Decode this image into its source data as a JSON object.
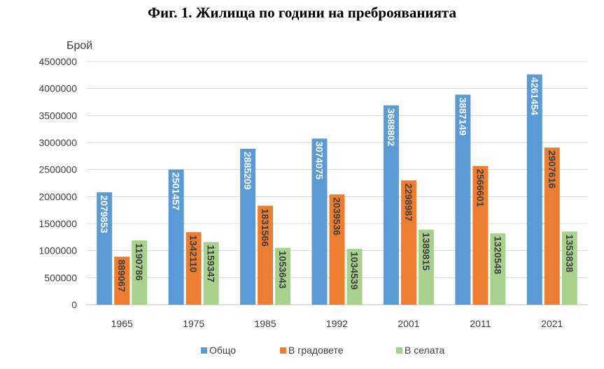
{
  "title": "Фиг. 1. Жилища по години на преброяванията",
  "chart_data": {
    "type": "bar",
    "title": "Фиг. 1. Жилища по години на преброяванията",
    "ylabel": "Брой",
    "xlabel": "",
    "categories": [
      "1965",
      "1975",
      "1985",
      "1992",
      "2001",
      "2011",
      "2021"
    ],
    "ylim": [
      0,
      4500000
    ],
    "yticks": [
      "0",
      "500000",
      "1000000",
      "1500000",
      "2000000",
      "2500000",
      "3000000",
      "3500000",
      "4000000",
      "4500000"
    ],
    "grid": true,
    "legend_position": "bottom",
    "series": [
      {
        "name": "Общо",
        "color": "#5b9bd5",
        "label_color": "#ffffff",
        "values": [
          2079853,
          2501457,
          2885209,
          3074075,
          3688802,
          3887149,
          4261454
        ]
      },
      {
        "name": "В градовете",
        "color": "#ed7d31",
        "label_color": "#404040",
        "values": [
          889067,
          1342110,
          1831566,
          2039536,
          2298987,
          2566601,
          2907616
        ]
      },
      {
        "name": "В селата",
        "color": "#a9d18e",
        "label_color": "#404040",
        "values": [
          1190786,
          1159347,
          1053643,
          1034539,
          1389815,
          1320548,
          1353838
        ]
      }
    ]
  }
}
